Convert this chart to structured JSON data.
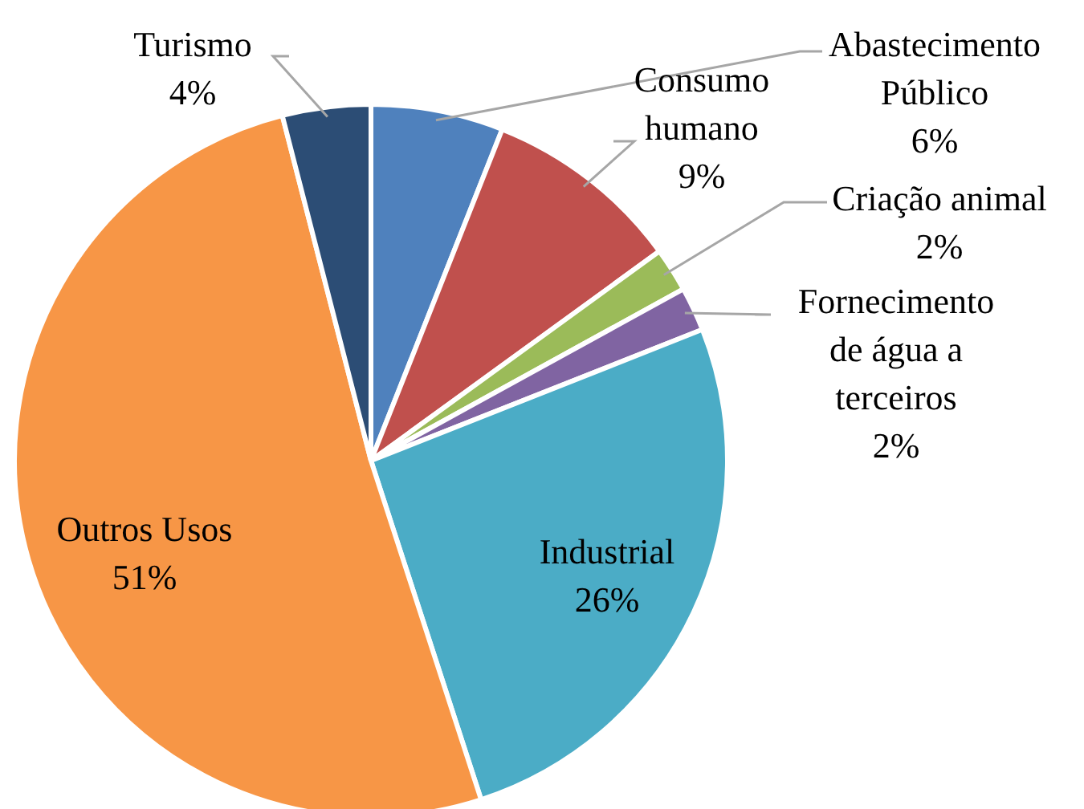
{
  "chart_data": {
    "type": "pie",
    "categories": [
      "Abastecimento Público",
      "Consumo humano",
      "Criação animal",
      "Fornecimento de água a terceiros",
      "Industrial",
      "Outros Usos",
      "Turismo"
    ],
    "values": [
      6,
      9,
      2,
      2,
      26,
      51,
      4
    ],
    "value_labels": [
      "6%",
      "9%",
      "2%",
      "2%",
      "26%",
      "51%",
      "4%"
    ],
    "colors": [
      "#4f81bd",
      "#c0504d",
      "#9bbb59",
      "#8064a2",
      "#4bacc6",
      "#f79646",
      "#2c4d75"
    ]
  }
}
